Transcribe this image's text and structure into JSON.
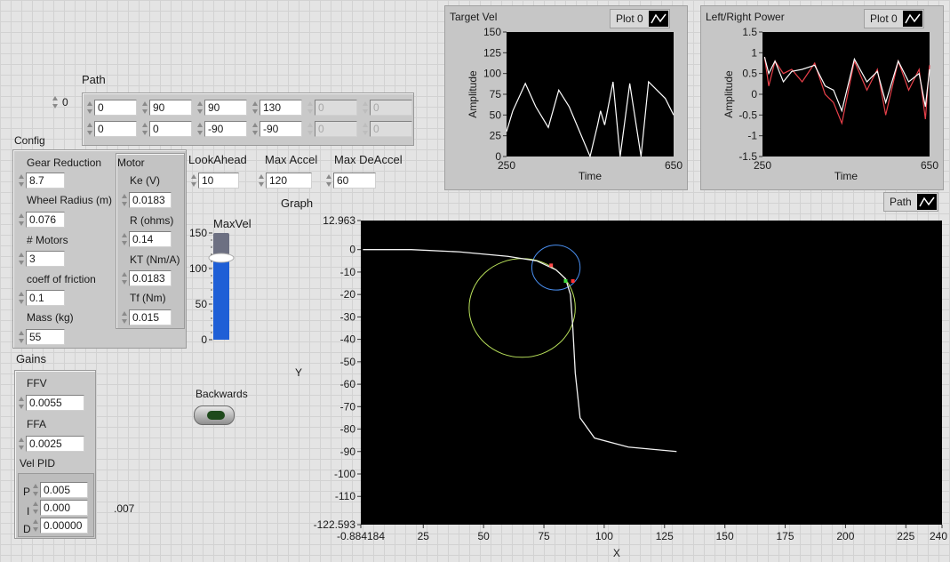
{
  "path": {
    "label": "Path",
    "index": "0",
    "cols": [
      {
        "top": "0",
        "bottom": "0",
        "enabled": true
      },
      {
        "top": "90",
        "bottom": "0",
        "enabled": true
      },
      {
        "top": "90",
        "bottom": "-90",
        "enabled": true
      },
      {
        "top": "130",
        "bottom": "-90",
        "enabled": true
      },
      {
        "top": "0",
        "bottom": "0",
        "enabled": false
      },
      {
        "top": "0",
        "bottom": "0",
        "enabled": false
      }
    ]
  },
  "config": {
    "label": "Config",
    "gear_reduction": {
      "label": "Gear Reduction",
      "value": "8.7"
    },
    "wheel_radius": {
      "label": "Wheel Radius (m)",
      "value": "0.076"
    },
    "motors": {
      "label": "# Motors",
      "value": "3"
    },
    "friction": {
      "label": "coeff of friction",
      "value": "0.1"
    },
    "mass": {
      "label": "Mass (kg)",
      "value": "55"
    },
    "motor": {
      "label": "Motor",
      "ke": {
        "label": "Ke (V)",
        "value": "0.0183"
      },
      "r": {
        "label": "R (ohms)",
        "value": "0.14"
      },
      "kt": {
        "label": "KT (Nm/A)",
        "value": "0.0183"
      },
      "tf": {
        "label": "Tf (Nm)",
        "value": "0.015"
      }
    }
  },
  "lookahead": {
    "label": "LookAhead",
    "value": "10"
  },
  "max_accel": {
    "label": "Max Accel",
    "value": "120"
  },
  "max_deaccel": {
    "label": "Max DeAccel",
    "value": "60"
  },
  "maxvel": {
    "label": "MaxVel",
    "ticks": [
      "150",
      "100",
      "50",
      "0"
    ],
    "max": 150,
    "value": 110
  },
  "gains": {
    "label": "Gains",
    "ffv": {
      "label": "FFV",
      "value": "0.0055"
    },
    "ffa": {
      "label": "FFA",
      "value": "0.0025"
    },
    "vel_pid": {
      "label": "Vel PID",
      "p": "0.005",
      "i": "0.000",
      "d": "0.00000",
      "p_label": "P",
      "i_label": "I",
      "d_label": "D"
    },
    "note": ".007"
  },
  "backwards": {
    "label": "Backwards",
    "on": false
  },
  "target_vel": {
    "title": "Target Vel",
    "legend": "Plot 0",
    "ylabel": "Amplitude",
    "xlabel": "Time",
    "yticks": [
      "150",
      "125",
      "100",
      "75",
      "50",
      "25",
      "0"
    ],
    "xticks": [
      "250",
      "650"
    ]
  },
  "lr_power": {
    "title": "Left/Right Power",
    "legend": "Plot 0",
    "ylabel": "Amplitude",
    "xlabel": "Time",
    "yticks": [
      "1.5",
      "1",
      "0.5",
      "0",
      "-0.5",
      "-1",
      "-1.5"
    ],
    "xticks": [
      "250",
      "650"
    ]
  },
  "graph": {
    "title": "Graph",
    "legend": "Path",
    "ylabel": "Y",
    "xlabel": "X",
    "yticks": [
      "12.963",
      "0",
      "-10",
      "-20",
      "-30",
      "-40",
      "-50",
      "-60",
      "-70",
      "-80",
      "-90",
      "-100",
      "-110",
      "-122.593"
    ],
    "xticks": [
      "-0.884184",
      "25",
      "50",
      "75",
      "100",
      "125",
      "150",
      "175",
      "200",
      "225",
      "240"
    ]
  },
  "chart_data": [
    {
      "type": "line",
      "title": "Target Vel",
      "xlabel": "Time",
      "ylabel": "Amplitude",
      "xlim": [
        250,
        650
      ],
      "ylim": [
        0,
        150
      ],
      "series": [
        {
          "x": [
            250,
            265,
            295,
            320,
            350,
            375,
            400,
            425,
            450,
            468,
            475,
            485,
            505,
            522,
            545,
            572,
            590,
            630,
            650
          ],
          "y": [
            30,
            55,
            88,
            60,
            35,
            80,
            60,
            30,
            0,
            38,
            55,
            38,
            90,
            0,
            88,
            0,
            90,
            70,
            50
          ]
        }
      ]
    },
    {
      "type": "line",
      "title": "Left/Right Power",
      "xlabel": "Time",
      "ylabel": "Amplitude",
      "xlim": [
        250,
        650
      ],
      "ylim": [
        -1.5,
        1.5
      ],
      "series": [
        {
          "x": [
            255,
            265,
            280,
            300,
            320,
            345,
            375,
            400,
            420,
            440,
            470,
            500,
            525,
            545,
            575,
            600,
            625,
            640,
            650
          ],
          "y": [
            0.9,
            0.2,
            0.8,
            0.5,
            0.6,
            0.3,
            0.75,
            0.0,
            -0.2,
            -0.7,
            0.8,
            0.1,
            0.6,
            -0.5,
            0.8,
            0.1,
            0.6,
            -0.6,
            0.7
          ]
        },
        {
          "x": [
            255,
            265,
            280,
            300,
            320,
            345,
            375,
            400,
            420,
            440,
            470,
            500,
            525,
            545,
            575,
            600,
            625,
            640,
            650
          ],
          "y": [
            0.9,
            0.5,
            0.8,
            0.3,
            0.55,
            0.6,
            0.7,
            0.2,
            0.1,
            -0.4,
            0.85,
            0.3,
            0.55,
            -0.2,
            0.8,
            0.3,
            0.5,
            -0.3,
            0.6
          ]
        }
      ]
    },
    {
      "type": "line",
      "title": "Graph",
      "xlabel": "X",
      "ylabel": "Y",
      "xlim": [
        -0.884184,
        240
      ],
      "ylim": [
        -122.593,
        12.963
      ],
      "series": [
        {
          "x": [
            0,
            20,
            40,
            60,
            72,
            80,
            84,
            86,
            87,
            88,
            90,
            96,
            110,
            130
          ],
          "y": [
            0,
            0,
            -1,
            -3,
            -5,
            -9,
            -13,
            -20,
            -35,
            -55,
            -75,
            -84,
            -88,
            -90
          ]
        }
      ],
      "circles": [
        {
          "cx": 80,
          "cy": -8,
          "r": 10
        },
        {
          "cx": 66,
          "cy": -26,
          "r": 22
        }
      ],
      "points": [
        {
          "x": 78,
          "y": -7
        },
        {
          "x": 84,
          "y": -14
        },
        {
          "x": 87,
          "y": -14
        }
      ]
    }
  ]
}
